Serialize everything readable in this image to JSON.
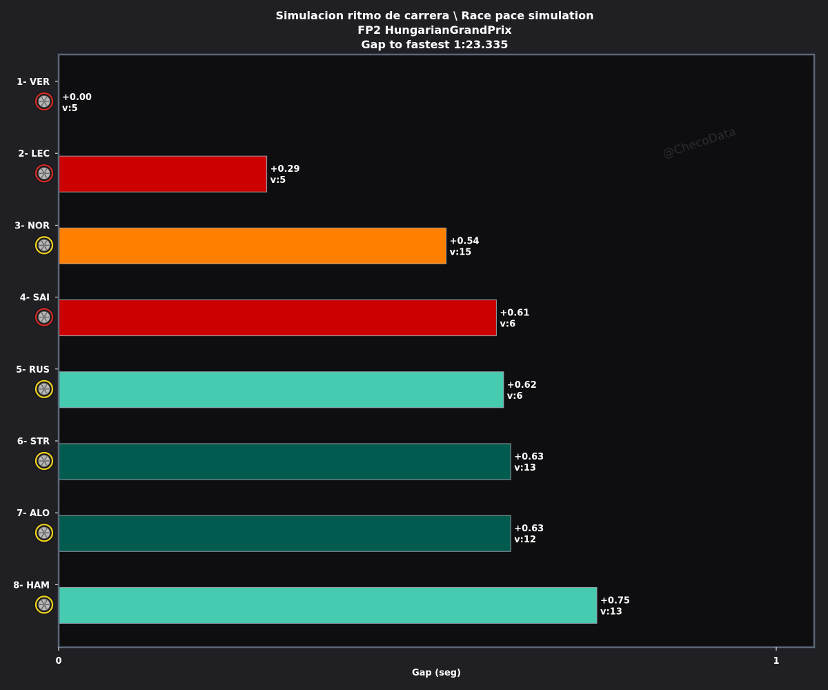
{
  "title": {
    "line1": "Simulacion ritmo de carrera \\ Race pace simulation",
    "line2": "FP2 HungarianGrandPrix",
    "line3": "Gap to fastest 1:23.335"
  },
  "watermark": "@ChecoData",
  "chart_data": {
    "type": "bar",
    "orientation": "horizontal",
    "title": "Simulacion ritmo de carrera \\ Race pace simulation",
    "xlabel": "Gap (seg)",
    "ylabel": "",
    "xlim": [
      0,
      1.05
    ],
    "xticks": [
      0,
      1
    ],
    "xtick_labels": [
      "0",
      "1"
    ],
    "grid": false,
    "categories": [
      "1- VER",
      "2- LEC",
      "3- NOR",
      "4- SAI",
      "5- RUS",
      "6- STR",
      "7- ALO",
      "8- HAM"
    ],
    "values": [
      0.0,
      0.29,
      0.54,
      0.61,
      0.62,
      0.63,
      0.63,
      0.75
    ],
    "value_labels": [
      "+0.00",
      "+0.29",
      "+0.54",
      "+0.61",
      "+0.62",
      "+0.63",
      "+0.63",
      "+0.75"
    ],
    "lap_labels": [
      "v:5",
      "v:5",
      "v:15",
      "v:6",
      "v:6",
      "v:13",
      "v:12",
      "v:13"
    ],
    "tyres": [
      "soft",
      "soft",
      "medium",
      "soft",
      "medium",
      "medium",
      "medium",
      "medium"
    ],
    "bar_colors": [
      "#1e41ff",
      "#cc0000",
      "#ff8000",
      "#cc0000",
      "#46cbb1",
      "#025b4f",
      "#025b4f",
      "#46cbb1"
    ]
  },
  "colors": {
    "page_background": "#202024",
    "plot_background": "#0e0e10",
    "plot_border": "#5a6778",
    "soft_tyre": "#d42a2a",
    "medium_tyre": "#f0d320",
    "tyre_body": "#1a1a1a"
  }
}
